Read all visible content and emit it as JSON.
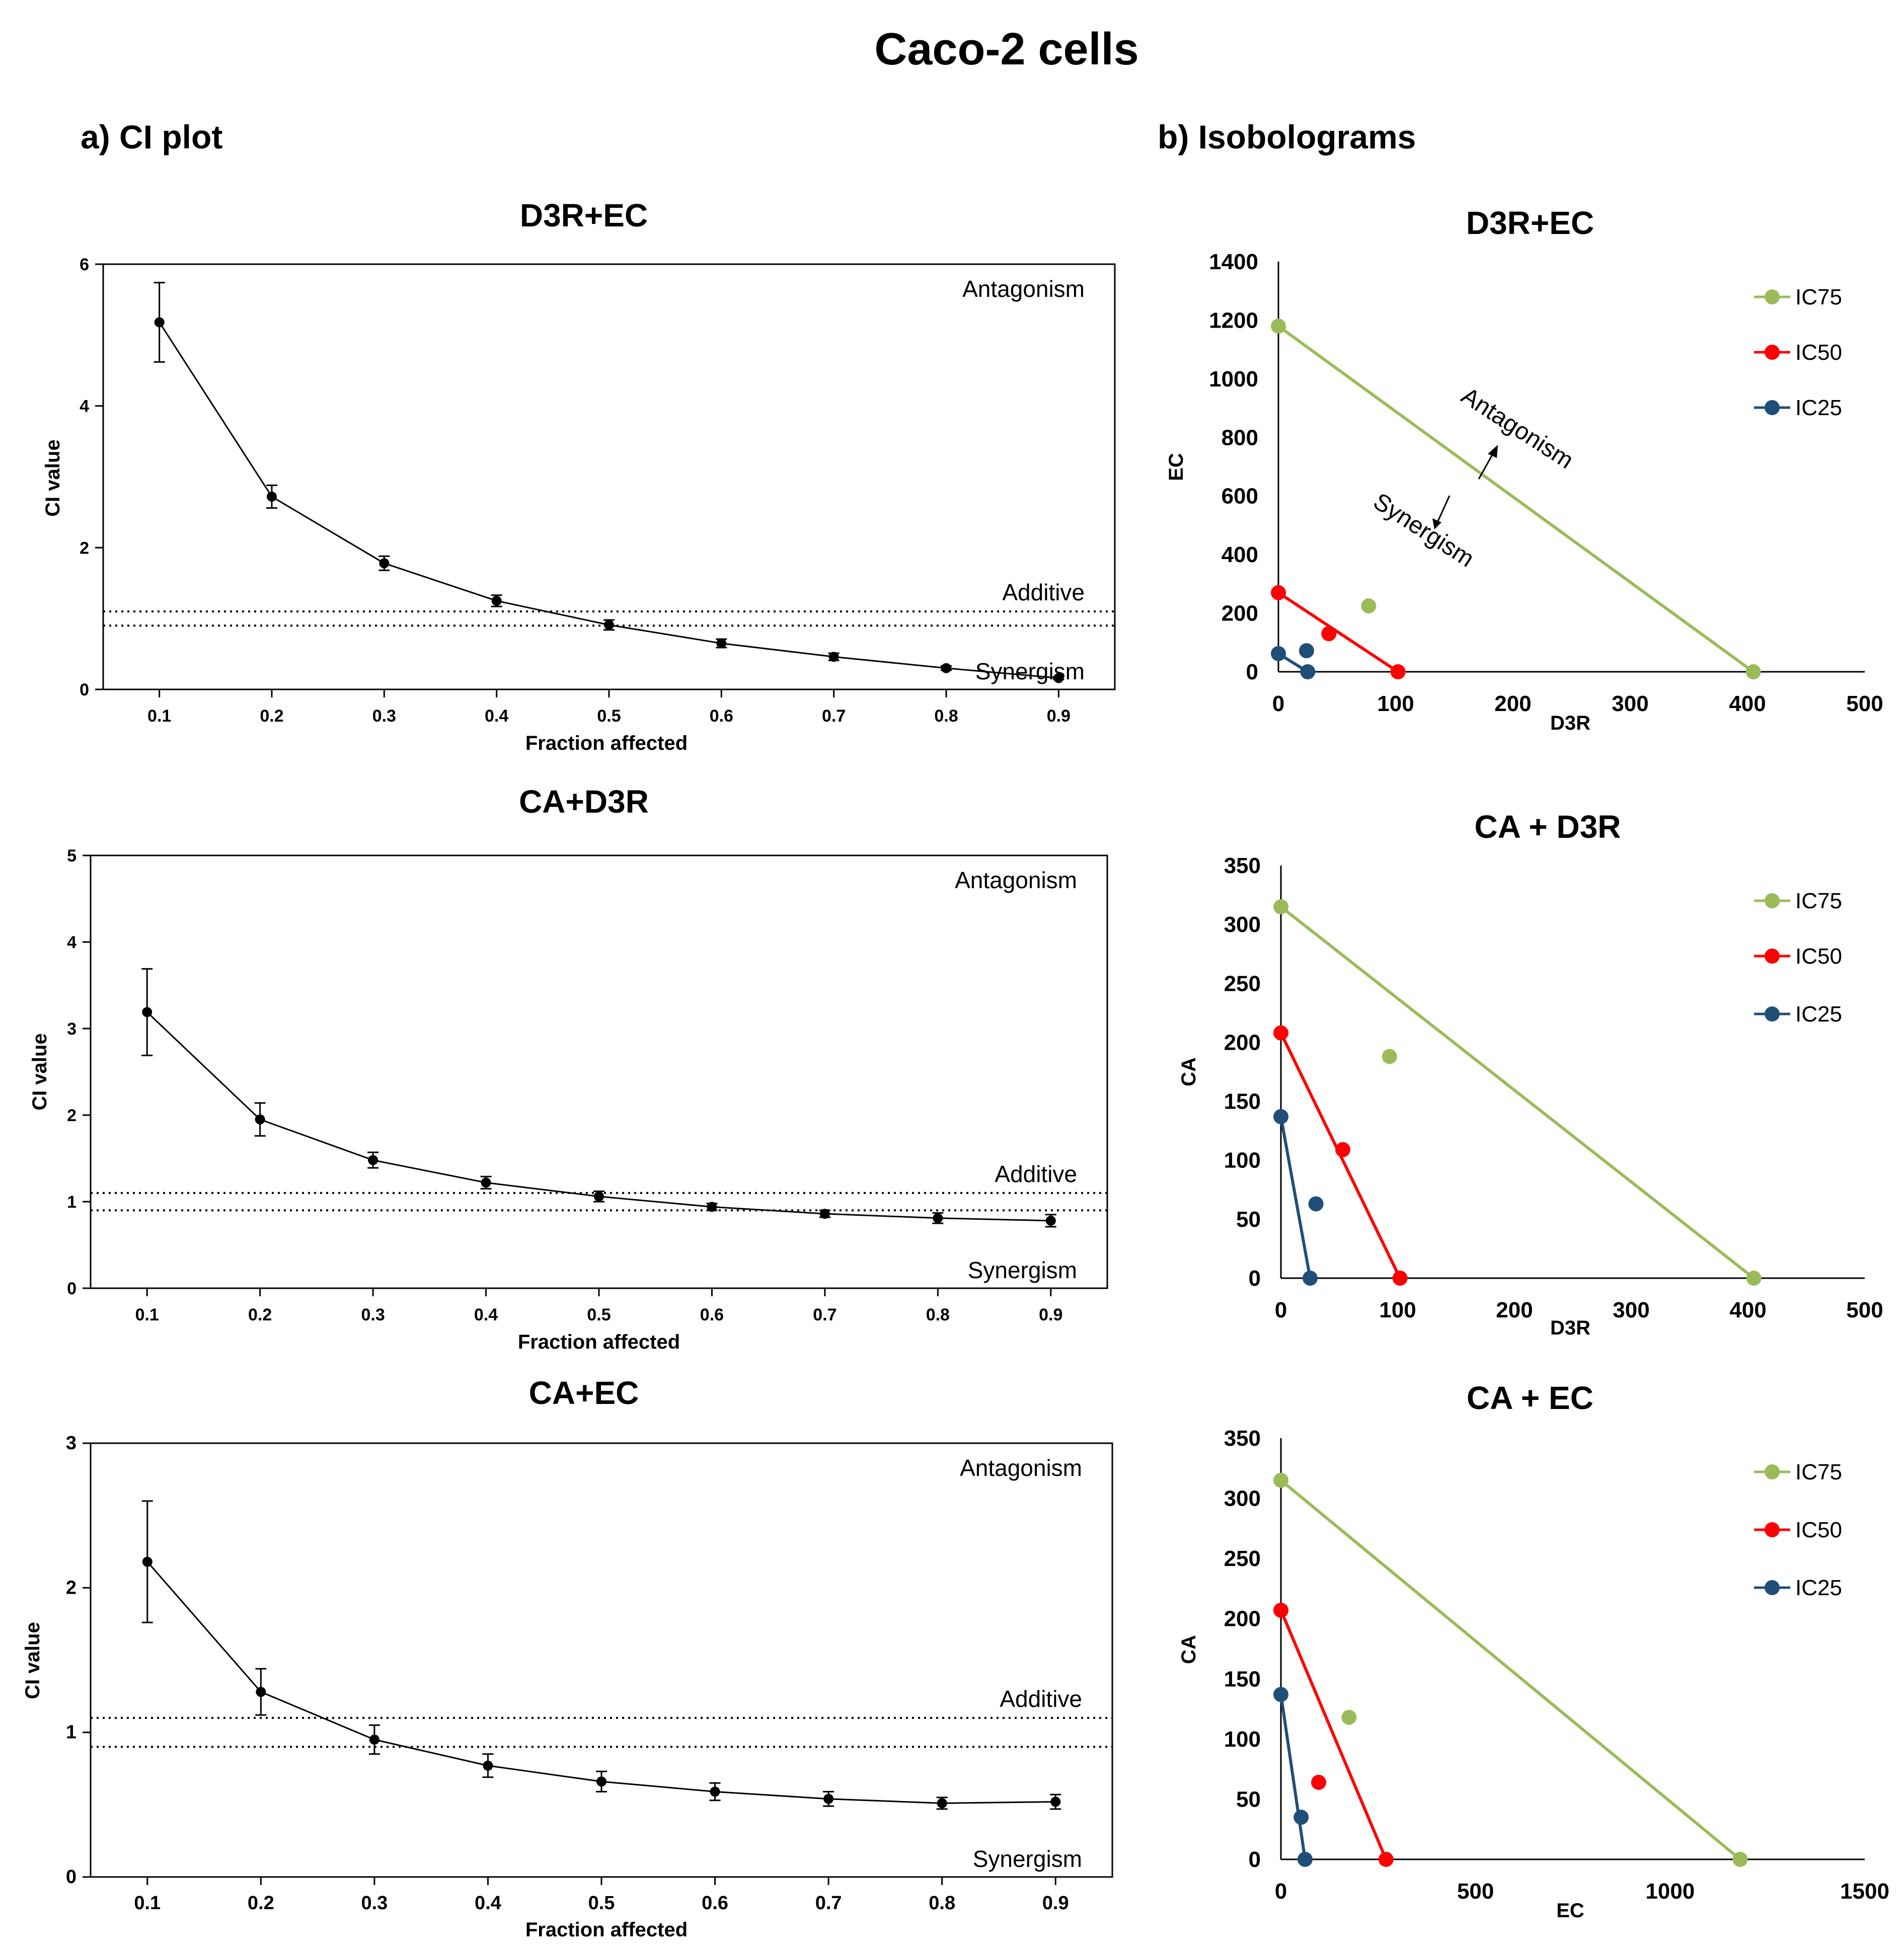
{
  "figure": {
    "title": "Caco-2 cells",
    "panel_a_label": "a) CI plot",
    "panel_b_label": "b) Isobolograms"
  },
  "chart_data": [
    {
      "id": "ci1",
      "type": "line",
      "title": "D3R+EC",
      "xlabel": "Fraction affected",
      "ylabel": "CI value",
      "xlim": [
        0.05,
        0.95
      ],
      "ylim": [
        0,
        6
      ],
      "xticks": [
        0.1,
        0.2,
        0.3,
        0.4,
        0.5,
        0.6,
        0.7,
        0.8,
        0.9
      ],
      "xtick_labels": [
        "0.1",
        "0.2",
        "0.3",
        "0.4",
        "0.5",
        "0.6",
        "0.7",
        "0.8",
        "0.9"
      ],
      "yticks": [
        0,
        2,
        4,
        6
      ],
      "ytick_labels": [
        "0",
        "2",
        "4",
        "6"
      ],
      "additive_band": [
        0.9,
        1.1
      ],
      "annotations": {
        "antagonism": "Antagonism",
        "additive": "Additive",
        "synergism": "Synergism"
      },
      "series": [
        {
          "name": "CI",
          "x": [
            0.1,
            0.2,
            0.3,
            0.4,
            0.5,
            0.6,
            0.7,
            0.8,
            0.9
          ],
          "y": [
            5.18,
            2.72,
            1.78,
            1.25,
            0.91,
            0.65,
            0.46,
            0.3,
            0.16
          ],
          "err": [
            0.56,
            0.16,
            0.1,
            0.08,
            0.07,
            0.06,
            0.05,
            0.03,
            0.02
          ]
        }
      ]
    },
    {
      "id": "ci2",
      "type": "line",
      "title": "CA+D3R",
      "xlabel": "Fraction affected",
      "ylabel": "CI value",
      "xlim": [
        0.05,
        0.95
      ],
      "ylim": [
        0,
        5
      ],
      "xticks": [
        0.1,
        0.2,
        0.3,
        0.4,
        0.5,
        0.6,
        0.7,
        0.8,
        0.9
      ],
      "xtick_labels": [
        "0.1",
        "0.2",
        "0.3",
        "0.4",
        "0.5",
        "0.6",
        "0.7",
        "0.8",
        "0.9"
      ],
      "yticks": [
        0,
        1,
        2,
        3,
        4,
        5
      ],
      "ytick_labels": [
        "0",
        "1",
        "2",
        "3",
        "4",
        "5"
      ],
      "additive_band": [
        0.9,
        1.1
      ],
      "annotations": {
        "antagonism": "Antagonism",
        "additive": "Additive",
        "synergism": "Synergism"
      },
      "series": [
        {
          "name": "CI",
          "x": [
            0.1,
            0.2,
            0.3,
            0.4,
            0.5,
            0.6,
            0.7,
            0.8,
            0.9
          ],
          "y": [
            3.19,
            1.95,
            1.48,
            1.22,
            1.06,
            0.94,
            0.86,
            0.81,
            0.78
          ],
          "err": [
            0.5,
            0.19,
            0.09,
            0.07,
            0.06,
            0.04,
            0.04,
            0.06,
            0.07
          ]
        }
      ]
    },
    {
      "id": "ci3",
      "type": "line",
      "title": "CA+EC",
      "xlabel": "Fraction affected",
      "ylabel": "CI value",
      "xlim": [
        0.05,
        0.95
      ],
      "ylim": [
        0,
        3
      ],
      "xticks": [
        0.1,
        0.2,
        0.3,
        0.4,
        0.5,
        0.6,
        0.7,
        0.8,
        0.9
      ],
      "xtick_labels": [
        "0.1",
        "0.2",
        "0.3",
        "0.4",
        "0.5",
        "0.6",
        "0.7",
        "0.8",
        "0.9"
      ],
      "yticks": [
        0,
        1,
        2,
        3
      ],
      "ytick_labels": [
        "0",
        "1",
        "2",
        "3"
      ],
      "additive_band": [
        0.9,
        1.1
      ],
      "annotations": {
        "antagonism": "Antagonism",
        "additive": "Additive",
        "synergism": "Synergism"
      },
      "series": [
        {
          "name": "CI",
          "x": [
            0.1,
            0.2,
            0.3,
            0.4,
            0.5,
            0.6,
            0.7,
            0.8,
            0.9
          ],
          "y": [
            2.18,
            1.28,
            0.95,
            0.77,
            0.66,
            0.59,
            0.54,
            0.51,
            0.52
          ],
          "err": [
            0.42,
            0.16,
            0.1,
            0.08,
            0.07,
            0.06,
            0.05,
            0.04,
            0.05
          ]
        }
      ]
    },
    {
      "id": "iso1",
      "type": "scatter",
      "title": "D3R+EC",
      "xlabel": "D3R",
      "ylabel": "EC",
      "xlim": [
        0,
        500
      ],
      "ylim": [
        0,
        1400
      ],
      "xticks": [
        0,
        100,
        200,
        300,
        400,
        500
      ],
      "xtick_labels": [
        "0",
        "100",
        "200",
        "300",
        "400",
        "500"
      ],
      "yticks": [
        0,
        200,
        400,
        600,
        800,
        1000,
        1200,
        1400
      ],
      "ytick_labels": [
        "0",
        "200",
        "400",
        "600",
        "800",
        "1000",
        "1200",
        "1400"
      ],
      "annotations": {
        "antagonism": "Antagonism",
        "synergism": "Synergism"
      },
      "series": [
        {
          "name": "IC75",
          "color": "#9bbb59",
          "line": [
            [
              0,
              1180
            ],
            [
              405,
              0
            ]
          ],
          "point": [
            77,
            225
          ]
        },
        {
          "name": "IC50",
          "color": "#ff0000",
          "line": [
            [
              0,
              270
            ],
            [
              102,
              0
            ]
          ],
          "point": [
            43,
            130
          ]
        },
        {
          "name": "IC25",
          "color": "#1f4e79",
          "line": [
            [
              0,
              62
            ],
            [
              25,
              0
            ]
          ],
          "point": [
            24,
            72
          ]
        }
      ]
    },
    {
      "id": "iso2",
      "type": "scatter",
      "title": "CA + D3R",
      "xlabel": "D3R",
      "ylabel": "CA",
      "xlim": [
        0,
        500
      ],
      "ylim": [
        0,
        350
      ],
      "xticks": [
        0,
        100,
        200,
        300,
        400,
        500
      ],
      "xtick_labels": [
        "0",
        "100",
        "200",
        "300",
        "400",
        "500"
      ],
      "yticks": [
        0,
        50,
        100,
        150,
        200,
        250,
        300,
        350
      ],
      "ytick_labels": [
        "0",
        "50",
        "100",
        "150",
        "200",
        "250",
        "300",
        "350"
      ],
      "series": [
        {
          "name": "IC75",
          "color": "#9bbb59",
          "line": [
            [
              0,
              315
            ],
            [
              405,
              0
            ]
          ],
          "point": [
            93,
            188
          ]
        },
        {
          "name": "IC50",
          "color": "#ff0000",
          "line": [
            [
              0,
              208
            ],
            [
              102,
              0
            ]
          ],
          "point": [
            53,
            109
          ]
        },
        {
          "name": "IC25",
          "color": "#1f4e79",
          "line": [
            [
              0,
              137
            ],
            [
              25,
              0
            ]
          ],
          "point": [
            30,
            63
          ]
        }
      ]
    },
    {
      "id": "iso3",
      "type": "scatter",
      "title": "CA + EC",
      "xlabel": "EC",
      "ylabel": "CA",
      "xlim": [
        0,
        1500
      ],
      "ylim": [
        0,
        350
      ],
      "xticks": [
        0,
        500,
        1000,
        1500
      ],
      "xtick_labels": [
        "0",
        "500",
        "1000",
        "1500"
      ],
      "yticks": [
        0,
        50,
        100,
        150,
        200,
        250,
        300,
        350
      ],
      "ytick_labels": [
        "0",
        "50",
        "100",
        "150",
        "200",
        "250",
        "300",
        "350"
      ],
      "series": [
        {
          "name": "IC75",
          "color": "#9bbb59",
          "line": [
            [
              0,
              315
            ],
            [
              1180,
              0
            ]
          ],
          "point": [
            175,
            118
          ]
        },
        {
          "name": "IC50",
          "color": "#ff0000",
          "line": [
            [
              0,
              207
            ],
            [
              270,
              0
            ]
          ],
          "point": [
            97,
            64
          ]
        },
        {
          "name": "IC25",
          "color": "#1f4e79",
          "line": [
            [
              0,
              137
            ],
            [
              62,
              0
            ]
          ],
          "point": [
            52,
            35
          ]
        }
      ]
    }
  ]
}
